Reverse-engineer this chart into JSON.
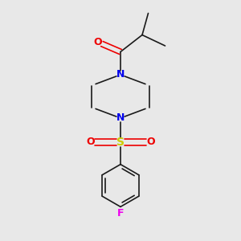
{
  "bg_color": "#e8e8e8",
  "bond_color": "#1a1a1a",
  "N_color": "#0000ee",
  "O_color": "#ee0000",
  "S_color": "#cccc00",
  "F_color": "#ee00ee",
  "line_width": 1.2,
  "font_size": 9,
  "fig_size": [
    3.0,
    3.0
  ],
  "dpi": 100,
  "xlim": [
    0,
    10
  ],
  "ylim": [
    0,
    10
  ]
}
